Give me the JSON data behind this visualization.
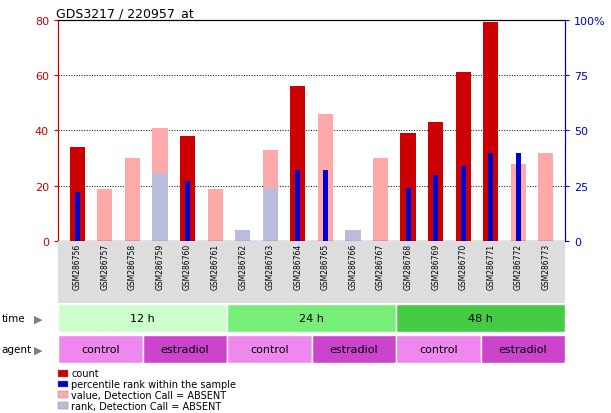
{
  "title": "GDS3217 / 220957_at",
  "samples": [
    "GSM286756",
    "GSM286757",
    "GSM286758",
    "GSM286759",
    "GSM286760",
    "GSM286761",
    "GSM286762",
    "GSM286763",
    "GSM286764",
    "GSM286765",
    "GSM286766",
    "GSM286767",
    "GSM286768",
    "GSM286769",
    "GSM286770",
    "GSM286771",
    "GSM286772",
    "GSM286773"
  ],
  "count_values": [
    34,
    0,
    0,
    0,
    38,
    0,
    0,
    0,
    56,
    0,
    0,
    0,
    39,
    43,
    61,
    79,
    0,
    0
  ],
  "rank_values": [
    22,
    0,
    0,
    0,
    27,
    0,
    0,
    0,
    32,
    32,
    0,
    0,
    24,
    30,
    34,
    40,
    40,
    0
  ],
  "absent_value": [
    34,
    19,
    30,
    41,
    0,
    19,
    0,
    33,
    0,
    46,
    0,
    30,
    0,
    0,
    0,
    0,
    28,
    32
  ],
  "absent_rank": [
    22,
    0,
    0,
    31,
    0,
    0,
    5,
    24,
    0,
    0,
    5,
    0,
    0,
    0,
    0,
    0,
    0,
    0
  ],
  "color_count": "#cc0000",
  "color_rank": "#0000cc",
  "color_absent_val": "#ffaaaa",
  "color_absent_rank": "#bbbbdd",
  "ylim_left": [
    0,
    80
  ],
  "ylim_right": [
    0,
    100
  ],
  "yticks_left": [
    0,
    20,
    40,
    60,
    80
  ],
  "yticks_right": [
    0,
    25,
    50,
    75,
    100
  ],
  "ytick_labels_left": [
    "0",
    "20",
    "40",
    "60",
    "80"
  ],
  "ytick_labels_right": [
    "0",
    "25",
    "50",
    "75",
    "100%"
  ],
  "time_groups": [
    {
      "label": "12 h",
      "start": 0,
      "end": 6,
      "color": "#ccffcc"
    },
    {
      "label": "24 h",
      "start": 6,
      "end": 12,
      "color": "#77ee77"
    },
    {
      "label": "48 h",
      "start": 12,
      "end": 18,
      "color": "#44cc44"
    }
  ],
  "agent_groups": [
    {
      "label": "control",
      "start": 0,
      "end": 3,
      "color": "#ee88ee"
    },
    {
      "label": "estradiol",
      "start": 3,
      "end": 6,
      "color": "#cc44cc"
    },
    {
      "label": "control",
      "start": 6,
      "end": 9,
      "color": "#ee88ee"
    },
    {
      "label": "estradiol",
      "start": 9,
      "end": 12,
      "color": "#cc44cc"
    },
    {
      "label": "control",
      "start": 12,
      "end": 15,
      "color": "#ee88ee"
    },
    {
      "label": "estradiol",
      "start": 15,
      "end": 18,
      "color": "#cc44cc"
    }
  ],
  "bar_width": 0.55,
  "rank_bar_width": 0.18,
  "legend_items": [
    {
      "label": "count",
      "color": "#cc0000"
    },
    {
      "label": "percentile rank within the sample",
      "color": "#0000cc"
    },
    {
      "label": "value, Detection Call = ABSENT",
      "color": "#ffaaaa"
    },
    {
      "label": "rank, Detection Call = ABSENT",
      "color": "#bbbbdd"
    }
  ]
}
